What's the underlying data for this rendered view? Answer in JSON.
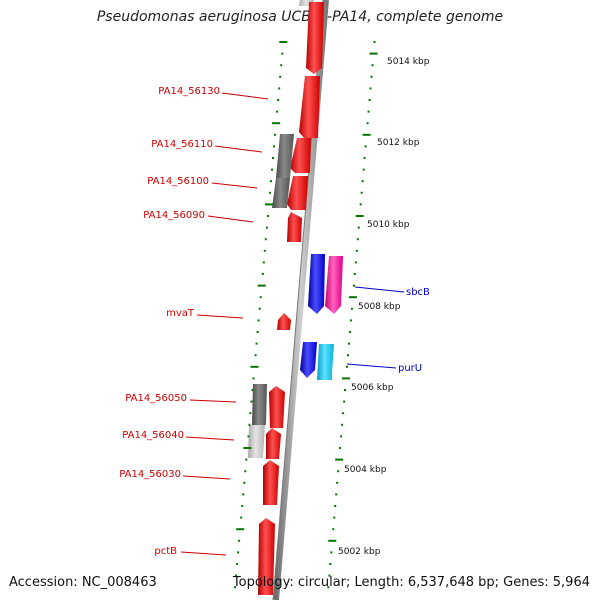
{
  "title": "Pseudomonas aeruginosa UCBPP-PA14, complete genome",
  "footer": {
    "accession": "Accession: NC_008463",
    "summary": "Topology: circular; Length: 6,537,648 bp; Genes: 5,964"
  },
  "colors": {
    "gene": "#ff0000",
    "gene_grey": "#666666",
    "gene_lightgrey": "#c0c0c0",
    "blue": "#0000ff",
    "magenta": "#ff1aa6",
    "cyan": "#00c8f0",
    "tick": "#007700",
    "backbone": "#8c8c8c",
    "label_red": "#cc0000",
    "label_blue": "#0000cc"
  },
  "scale_labels": [
    "5014 kbp",
    "5012 kbp",
    "5010 kbp",
    "5008 kbp",
    "5006 kbp",
    "5004 kbp",
    "5002 kbp"
  ],
  "gene_labels_left": [
    "PA14_56130",
    "PA14_56110",
    "PA14_56100",
    "PA14_56090",
    "mvaT",
    "PA14_56050",
    "PA14_56040",
    "PA14_56030",
    "pctB"
  ],
  "gene_labels_right": [
    "sbcB",
    "purU"
  ]
}
